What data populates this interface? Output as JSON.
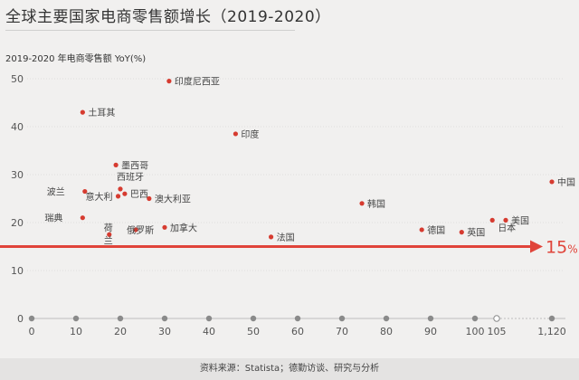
{
  "title": "全球主要国家电商零售额增长（2019-2020）",
  "source": "资料来源：Statista；德勤访谈、研究与分析",
  "chart_data": {
    "type": "scatter",
    "ylabel": "2019-2020 年电商零售额 YoY(%)",
    "ylim": [
      0,
      50
    ],
    "yticks": [
      0,
      10,
      20,
      30,
      40,
      50
    ],
    "xticks": [
      "0",
      "10",
      "20",
      "30",
      "40",
      "50",
      "60",
      "70",
      "80",
      "90",
      "100",
      "105",
      "1,120"
    ],
    "xtick_values": [
      0,
      10,
      20,
      30,
      40,
      50,
      60,
      70,
      80,
      90,
      100,
      105,
      1120
    ],
    "axis_break_after": 105,
    "dot_color": "#d63b30",
    "reference_line": {
      "y": 15,
      "label": "15",
      "unit": "%",
      "color": "#e0443a"
    },
    "points": [
      {
        "name": "印度尼西亚",
        "x": 31,
        "y": 49.5
      },
      {
        "name": "土耳其",
        "x": 11.5,
        "y": 43
      },
      {
        "name": "印度",
        "x": 46,
        "y": 38.5
      },
      {
        "name": "墨西哥",
        "x": 19,
        "y": 32
      },
      {
        "name": "西班牙",
        "x": 20,
        "y": 27
      },
      {
        "name": "波兰",
        "x": 12,
        "y": 26.5
      },
      {
        "name": "意大利",
        "x": 19.5,
        "y": 25.5
      },
      {
        "name": "巴西",
        "x": 21,
        "y": 26
      },
      {
        "name": "澳大利亚",
        "x": 26.5,
        "y": 25
      },
      {
        "name": "中国",
        "x": 1120,
        "y": 28.5
      },
      {
        "name": "韩国",
        "x": 74.5,
        "y": 24
      },
      {
        "name": "瑞典",
        "x": 11.5,
        "y": 21
      },
      {
        "name": "加拿大",
        "x": 30,
        "y": 19
      },
      {
        "name": "俄罗斯",
        "x": 23.5,
        "y": 18.5
      },
      {
        "name": "荷兰",
        "x": 17.5,
        "y": 17.5
      },
      {
        "name": "法国",
        "x": 54,
        "y": 17
      },
      {
        "name": "德国",
        "x": 88,
        "y": 18.5
      },
      {
        "name": "英国",
        "x": 97,
        "y": 18
      },
      {
        "name": "日本",
        "x": 104,
        "y": 20.5
      },
      {
        "name": "美国",
        "x": 110,
        "y": 20.5
      }
    ]
  }
}
